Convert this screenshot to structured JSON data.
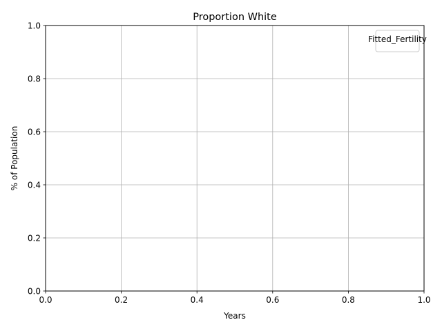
{
  "chart_data": {
    "type": "line",
    "title": "Proportion White",
    "xlabel": "Years",
    "ylabel": "% of Population",
    "xlim": [
      0,
      1
    ],
    "ylim": [
      0,
      1
    ],
    "x_ticks": [
      "0.0",
      "0.2",
      "0.4",
      "0.6",
      "0.8",
      "1.0"
    ],
    "y_ticks": [
      "0.0",
      "0.2",
      "0.4",
      "0.6",
      "0.8",
      "1.0"
    ],
    "grid": true,
    "legend": {
      "title": "Fitted_Fertility",
      "placement": "top-right",
      "entries": []
    },
    "series": []
  },
  "colors": {
    "grid": "#b0b0b0",
    "axis": "#000000",
    "legend_border": "#cccccc"
  }
}
